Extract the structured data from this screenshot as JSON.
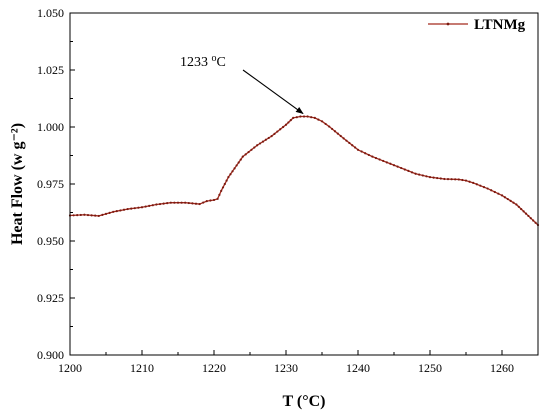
{
  "chart_data": {
    "type": "line",
    "xlabel": "T (°C)",
    "ylabel": "Heat Flow (w g⁻²)",
    "xlim": [
      1200,
      1265
    ],
    "ylim": [
      0.9,
      1.05
    ],
    "xticks": [
      1200,
      1210,
      1220,
      1230,
      1240,
      1250,
      1260
    ],
    "yticks": [
      0.9,
      0.925,
      0.95,
      0.975,
      1.0,
      1.025,
      1.05
    ],
    "xtick_labels": [
      "1200",
      "1210",
      "1220",
      "1230",
      "1240",
      "1250",
      "1260"
    ],
    "ytick_labels": [
      "0.900",
      "0.925",
      "0.950",
      "0.975",
      "1.000",
      "1.025",
      "1.050"
    ],
    "grid": false,
    "legend_position": "top-right",
    "series": [
      {
        "name": "LTNMg",
        "color": "#a52a1e",
        "marker_color": "#7a1a10",
        "x": [
          1200,
          1202,
          1204,
          1206,
          1208,
          1210,
          1212,
          1214,
          1216,
          1218,
          1219,
          1220,
          1220.5,
          1221,
          1222,
          1224,
          1226,
          1228,
          1230,
          1231,
          1232,
          1233,
          1234,
          1235,
          1236,
          1238,
          1240,
          1242,
          1244,
          1246,
          1248,
          1250,
          1252,
          1254,
          1255,
          1256,
          1258,
          1260,
          1262,
          1264,
          1265
        ],
        "y": [
          0.9612,
          0.9615,
          0.961,
          0.9628,
          0.964,
          0.9648,
          0.966,
          0.9668,
          0.9668,
          0.9662,
          0.9675,
          0.968,
          0.9685,
          0.972,
          0.978,
          0.987,
          0.992,
          0.996,
          1.001,
          1.004,
          1.0046,
          1.0046,
          1.004,
          1.0025,
          1.0002,
          0.995,
          0.99,
          0.987,
          0.9845,
          0.982,
          0.9795,
          0.978,
          0.9772,
          0.977,
          0.9765,
          0.9755,
          0.973,
          0.97,
          0.966,
          0.96,
          0.957
        ]
      }
    ],
    "annotation": {
      "label": "1233 °C",
      "label_main": "1233 ",
      "label_sup": "o",
      "label_unit": "C",
      "points_to": {
        "x": 1232.5,
        "y": 1.0046
      }
    }
  }
}
